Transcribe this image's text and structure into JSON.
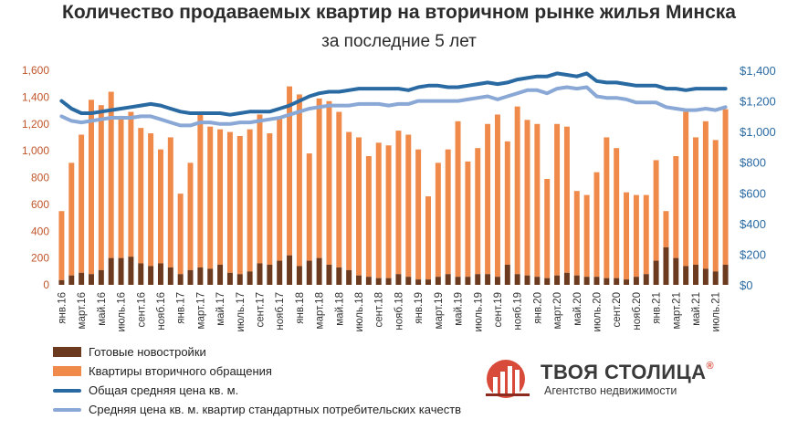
{
  "chart_data": {
    "type": "bar",
    "title": "Количество продаваемых квартир на вторичном рынке жилья Минска",
    "subtitle": "за последние 5 лет",
    "ylim_left": [
      0,
      1600
    ],
    "ylim_right": [
      0,
      1400
    ],
    "y_left_ticks": [
      "0",
      "200",
      "400",
      "600",
      "800",
      "1,000",
      "1,200",
      "1,400",
      "1,600"
    ],
    "y_right_ticks": [
      "$0",
      "$200",
      "$400",
      "$600",
      "$800",
      "$1,000",
      "$1,200",
      "$1,400"
    ],
    "x_tick_labels": [
      "янв.16",
      "март.16",
      "май.16",
      "июль.16",
      "сент.16",
      "нояб.16",
      "янв.17",
      "март.17",
      "май.17",
      "июль.17",
      "сент.17",
      "нояб.17",
      "янв.18",
      "март.18",
      "май.18",
      "июль.18",
      "сент.18",
      "нояб.18",
      "янв.19",
      "март.19",
      "май.19",
      "июль.19",
      "сент.19",
      "нояб.19",
      "янв.20",
      "март.20",
      "май.20",
      "июль.20",
      "сент.20",
      "нояб.20",
      "янв.21",
      "март.21",
      "май.21",
      "июль.21"
    ],
    "categories_count": 68,
    "series": [
      {
        "name": "Готовые новостройки",
        "type": "bar",
        "axis": "left",
        "color": "#6b3a1f",
        "values": [
          35,
          70,
          90,
          80,
          110,
          200,
          200,
          210,
          160,
          140,
          160,
          130,
          80,
          110,
          130,
          120,
          150,
          90,
          80,
          100,
          160,
          150,
          180,
          220,
          140,
          180,
          200,
          150,
          130,
          110,
          70,
          60,
          50,
          50,
          80,
          60,
          40,
          40,
          60,
          80,
          60,
          60,
          80,
          80,
          60,
          150,
          80,
          70,
          60,
          50,
          70,
          90,
          70,
          60,
          60,
          50,
          50,
          40,
          60,
          80,
          180,
          280,
          200,
          140,
          150,
          120,
          100,
          150
        ]
      },
      {
        "name": "Квартиры вторичного обращения",
        "type": "bar",
        "axis": "left",
        "color": "#ef8a4a",
        "values": [
          550,
          910,
          1120,
          1380,
          1340,
          1440,
          1260,
          1290,
          1170,
          1130,
          1010,
          1100,
          680,
          910,
          1270,
          1180,
          1160,
          1140,
          1110,
          1160,
          1270,
          1130,
          1250,
          1480,
          1420,
          980,
          1390,
          1370,
          1290,
          1140,
          1100,
          960,
          1060,
          1040,
          1150,
          1120,
          1010,
          660,
          910,
          1010,
          1220,
          920,
          1020,
          1200,
          1270,
          1070,
          1330,
          1230,
          1200,
          790,
          1200,
          1180,
          700,
          670,
          840,
          1100,
          1020,
          690,
          670,
          670,
          930,
          550,
          960,
          1290,
          1100,
          1220,
          1080,
          1310
        ]
      },
      {
        "name": "Общая средняя цена кв. м.",
        "type": "line",
        "axis": "right",
        "color": "#2a6aa3",
        "values": [
          1200,
          1150,
          1120,
          1120,
          1130,
          1140,
          1150,
          1160,
          1170,
          1180,
          1170,
          1150,
          1130,
          1120,
          1120,
          1120,
          1120,
          1110,
          1120,
          1130,
          1130,
          1130,
          1150,
          1170,
          1200,
          1230,
          1250,
          1260,
          1260,
          1270,
          1280,
          1280,
          1280,
          1280,
          1280,
          1270,
          1290,
          1300,
          1300,
          1290,
          1290,
          1300,
          1310,
          1320,
          1310,
          1320,
          1340,
          1350,
          1360,
          1360,
          1380,
          1370,
          1360,
          1380,
          1330,
          1320,
          1320,
          1310,
          1300,
          1300,
          1300,
          1280,
          1280,
          1270,
          1280,
          1280,
          1280,
          1280
        ]
      },
      {
        "name": "Средняя цена кв. м. квартир стандартных потребительских качеств",
        "type": "line",
        "axis": "right",
        "color": "#8aa8d6",
        "values": [
          1100,
          1070,
          1060,
          1070,
          1080,
          1090,
          1090,
          1090,
          1100,
          1100,
          1080,
          1060,
          1040,
          1040,
          1060,
          1060,
          1050,
          1050,
          1060,
          1060,
          1070,
          1080,
          1090,
          1110,
          1130,
          1150,
          1160,
          1170,
          1170,
          1170,
          1180,
          1180,
          1180,
          1170,
          1180,
          1180,
          1200,
          1200,
          1200,
          1200,
          1200,
          1210,
          1220,
          1230,
          1210,
          1230,
          1250,
          1270,
          1270,
          1250,
          1280,
          1290,
          1280,
          1290,
          1230,
          1220,
          1220,
          1210,
          1190,
          1190,
          1190,
          1160,
          1150,
          1140,
          1140,
          1150,
          1140,
          1160
        ]
      }
    ],
    "legend_placement": "bottom-left",
    "grid": false
  },
  "brand": {
    "name": "ТВОЯ СТОЛИЦА",
    "mark": "®",
    "tagline": "Агентство недвижимости"
  }
}
